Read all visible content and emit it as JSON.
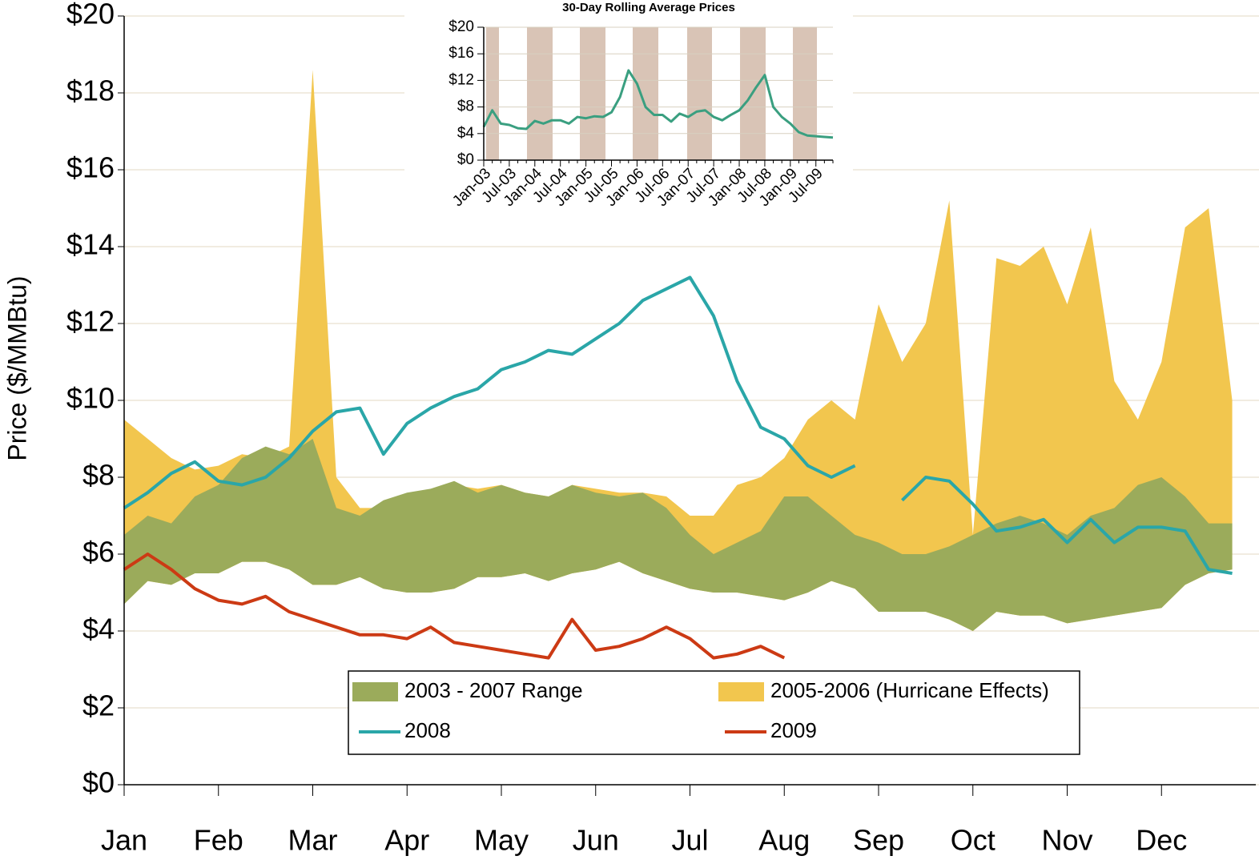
{
  "chart_data": [
    {
      "type": "line",
      "y_label": "Price ($/MMBtu)",
      "categories": [
        "Jan",
        null,
        null,
        null,
        "Feb",
        null,
        null,
        null,
        "Mar",
        null,
        null,
        null,
        "Apr",
        null,
        null,
        null,
        "May",
        null,
        null,
        null,
        "Jun",
        null,
        null,
        null,
        "Jul",
        null,
        null,
        null,
        "Aug",
        null,
        null,
        null,
        "Sep",
        null,
        null,
        null,
        "Oct",
        null,
        null,
        null,
        "Nov",
        null,
        null,
        null,
        "Dec",
        null,
        null,
        null
      ],
      "ylim": [
        0,
        20
      ],
      "yticks": [
        {
          "value": 0,
          "label": "$0"
        },
        {
          "value": 2,
          "label": "$2"
        },
        {
          "value": 4,
          "label": "$4"
        },
        {
          "value": 6,
          "label": "$6"
        },
        {
          "value": 8,
          "label": "$8"
        },
        {
          "value": 10,
          "label": "$10"
        },
        {
          "value": 12,
          "label": "$12"
        },
        {
          "value": 14,
          "label": "$14"
        },
        {
          "value": 16,
          "label": "$16"
        },
        {
          "value": 18,
          "label": "$18"
        },
        {
          "value": 20,
          "label": "$20"
        }
      ],
      "grid": true,
      "legend_position": "bottom-center",
      "series": [
        {
          "name": "2005-2006 (Hurricane Effects)",
          "color": "#f2c64e",
          "high": [
            9.5,
            9.0,
            8.5,
            8.2,
            8.3,
            8.6,
            8.5,
            8.8,
            18.6,
            8.0,
            7.2,
            7.2,
            7.5,
            7.6,
            7.8,
            7.7,
            7.8,
            7.6,
            7.5,
            7.8,
            7.7,
            7.6,
            7.6,
            7.5,
            7.0,
            7.0,
            7.8,
            8.0,
            8.5,
            9.5,
            10.0,
            9.5,
            12.5,
            11.0,
            12.0,
            15.2,
            6.5,
            13.7,
            13.5,
            14.0,
            12.5,
            14.5,
            10.5,
            9.5,
            11.0,
            14.5,
            15.0,
            10.0
          ],
          "low": [
            4.7,
            5.3,
            5.2,
            5.5,
            5.5,
            5.8,
            5.8,
            5.6,
            5.2,
            5.2,
            5.4,
            5.1,
            5.0,
            5.0,
            5.1,
            5.4,
            5.4,
            5.5,
            5.3,
            5.5,
            5.6,
            5.8,
            5.5,
            5.3,
            5.1,
            5.0,
            5.0,
            4.9,
            4.8,
            5.0,
            5.3,
            5.1,
            4.5,
            4.5,
            4.5,
            4.3,
            4.0,
            4.5,
            4.4,
            4.4,
            4.2,
            4.3,
            4.4,
            4.5,
            4.6,
            5.2,
            5.5,
            5.6
          ]
        },
        {
          "name": "2003 - 2007 Range",
          "color": "#9bab5b",
          "high": [
            6.5,
            7.0,
            6.8,
            7.5,
            7.8,
            8.5,
            8.8,
            8.6,
            9.0,
            7.2,
            7.0,
            7.4,
            7.6,
            7.7,
            7.9,
            7.6,
            7.8,
            7.6,
            7.5,
            7.8,
            7.6,
            7.5,
            7.6,
            7.2,
            6.5,
            6.0,
            6.3,
            6.6,
            7.5,
            7.5,
            7.0,
            6.5,
            6.3,
            6.0,
            6.0,
            6.2,
            6.5,
            6.8,
            7.0,
            6.8,
            6.5,
            7.0,
            7.2,
            7.8,
            8.0,
            7.5,
            6.8,
            6.8
          ],
          "low": [
            4.7,
            5.3,
            5.2,
            5.5,
            5.5,
            5.8,
            5.8,
            5.6,
            5.2,
            5.2,
            5.4,
            5.1,
            5.0,
            5.0,
            5.1,
            5.4,
            5.4,
            5.5,
            5.3,
            5.5,
            5.6,
            5.8,
            5.5,
            5.3,
            5.1,
            5.0,
            5.0,
            4.9,
            4.8,
            5.0,
            5.3,
            5.1,
            4.5,
            4.5,
            4.5,
            4.3,
            4.0,
            4.5,
            4.4,
            4.4,
            4.2,
            4.3,
            4.4,
            4.5,
            4.6,
            5.2,
            5.5,
            5.6
          ]
        },
        {
          "name": "2008",
          "color": "#2aa6a8",
          "values": [
            7.2,
            7.6,
            8.1,
            8.4,
            7.9,
            7.8,
            8.0,
            8.5,
            9.2,
            9.7,
            9.8,
            8.6,
            9.4,
            9.8,
            10.1,
            10.3,
            10.8,
            11.0,
            11.3,
            11.2,
            11.6,
            12.0,
            12.6,
            12.9,
            13.2,
            12.2,
            10.5,
            9.3,
            9.0,
            8.3,
            8.0,
            8.3,
            null,
            7.4,
            8.0,
            7.9,
            7.3,
            6.6,
            6.7,
            6.9,
            6.3,
            6.9,
            6.3,
            6.7,
            6.7,
            6.6,
            5.6,
            5.5
          ]
        },
        {
          "name": "2009",
          "color": "#cc3a14",
          "values": [
            5.6,
            6.0,
            5.6,
            5.1,
            4.8,
            4.7,
            4.9,
            4.5,
            4.3,
            4.1,
            3.9,
            3.9,
            3.8,
            4.1,
            3.7,
            3.6,
            3.5,
            3.4,
            3.3,
            4.3,
            3.5,
            3.6,
            3.8,
            4.1,
            3.8,
            3.3,
            3.4,
            3.6,
            3.3,
            null,
            null,
            null,
            null,
            null,
            null,
            null,
            null,
            null,
            null,
            null,
            null,
            null,
            null,
            null,
            null,
            null,
            null,
            null
          ]
        }
      ]
    },
    {
      "type": "line",
      "title": "30-Day Rolling Average Prices",
      "categories": [
        "Jan-03",
        null,
        null,
        "Jul-03",
        null,
        null,
        "Jan-04",
        null,
        null,
        "Jul-04",
        null,
        null,
        "Jan-05",
        null,
        null,
        "Jul-05",
        null,
        null,
        "Jan-06",
        null,
        null,
        "Jul-06",
        null,
        null,
        "Jan-07",
        null,
        null,
        "Jul-07",
        null,
        null,
        "Jan-08",
        null,
        null,
        "Jul-08",
        null,
        null,
        "Jan-09",
        null,
        null,
        "Jul-09",
        null,
        null
      ],
      "ylim": [
        0,
        20
      ],
      "yticks": [
        {
          "value": 0,
          "label": "$0"
        },
        {
          "value": 4,
          "label": "$4"
        },
        {
          "value": 8,
          "label": "$8"
        },
        {
          "value": 12,
          "label": "$12"
        },
        {
          "value": 16,
          "label": "$16"
        },
        {
          "value": 20,
          "label": "$20"
        }
      ],
      "grid": true,
      "series": [
        {
          "color": "#3a9f80",
          "values": [
            5.0,
            7.5,
            5.5,
            5.3,
            4.8,
            4.7,
            5.9,
            5.5,
            6.0,
            6.0,
            5.5,
            6.5,
            6.3,
            6.6,
            6.5,
            7.2,
            9.5,
            13.5,
            11.5,
            8.0,
            6.8,
            6.8,
            5.8,
            7.0,
            6.5,
            7.3,
            7.5,
            6.5,
            6.0,
            6.8,
            7.5,
            9.0,
            11.0,
            12.8,
            8.0,
            6.5,
            5.5,
            4.2,
            3.7,
            3.6,
            3.5,
            3.4
          ]
        }
      ]
    }
  ]
}
